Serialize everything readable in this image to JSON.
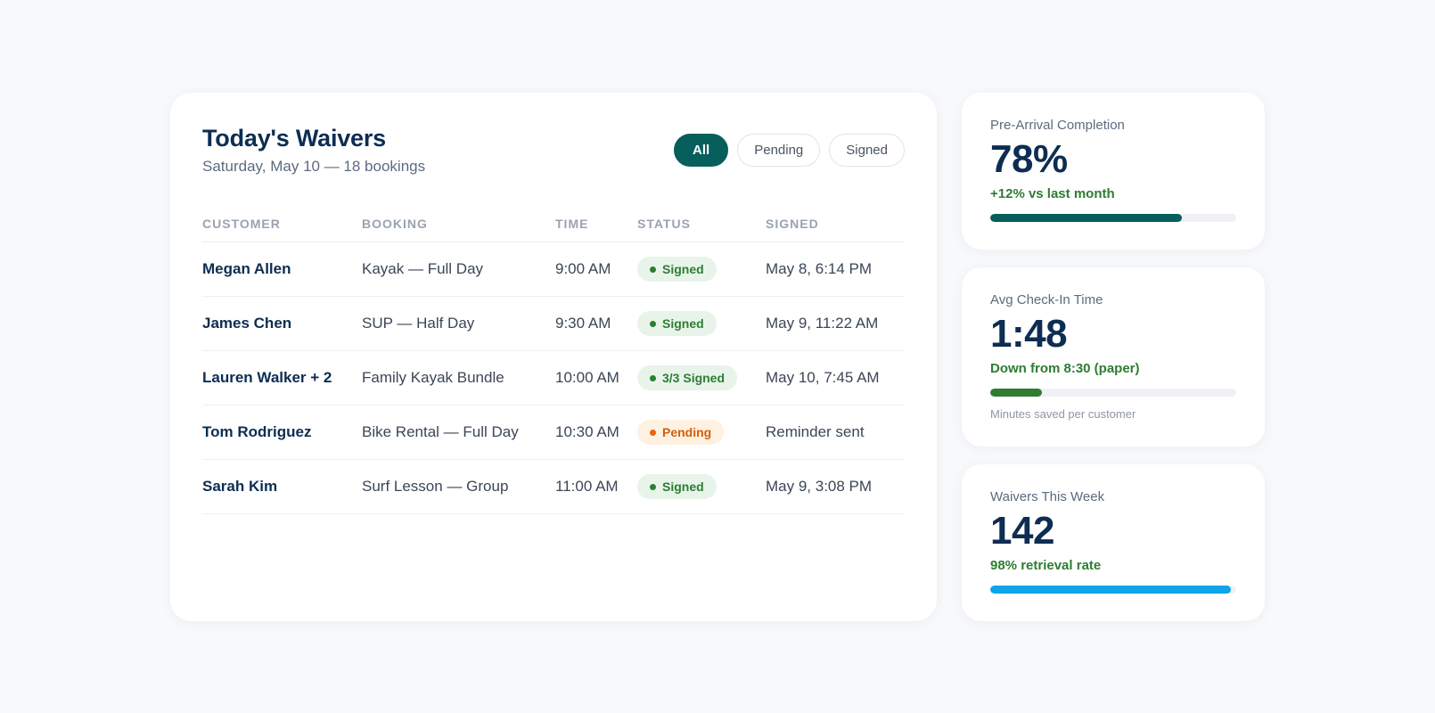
{
  "waivers": {
    "title": "Today's Waivers",
    "subtitle": "Saturday, May 10 — 18 bookings",
    "filters": [
      {
        "label": "All",
        "active": true
      },
      {
        "label": "Pending",
        "active": false
      },
      {
        "label": "Signed",
        "active": false
      }
    ],
    "columns": [
      "CUSTOMER",
      "BOOKING",
      "TIME",
      "STATUS",
      "SIGNED"
    ],
    "rows": [
      {
        "customer": "Megan Allen",
        "booking": "Kayak — Full Day",
        "time": "9:00 AM",
        "status": "Signed",
        "status_kind": "signed",
        "signed": "May 8, 6:14 PM"
      },
      {
        "customer": "James Chen",
        "booking": "SUP — Half Day",
        "time": "9:30 AM",
        "status": "Signed",
        "status_kind": "signed",
        "signed": "May 9, 11:22 AM"
      },
      {
        "customer": "Lauren Walker + 2",
        "booking": "Family Kayak Bundle",
        "time": "10:00 AM",
        "status": "3/3 Signed",
        "status_kind": "signed",
        "signed": "May 10, 7:45 AM"
      },
      {
        "customer": "Tom Rodriguez",
        "booking": "Bike Rental — Full Day",
        "time": "10:30 AM",
        "status": "Pending",
        "status_kind": "pending",
        "signed": "Reminder sent"
      },
      {
        "customer": "Sarah Kim",
        "booking": "Surf Lesson — Group",
        "time": "11:00 AM",
        "status": "Signed",
        "status_kind": "signed",
        "signed": "May 9, 3:08 PM"
      }
    ]
  },
  "stats": [
    {
      "label": "Pre-Arrival Completion",
      "value": "78%",
      "delta": "+12% vs last month",
      "progress": 0.78,
      "color": "#075f5c",
      "note": ""
    },
    {
      "label": "Avg Check-In Time",
      "value": "1:48",
      "delta": "Down from 8:30 (paper)",
      "progress": 0.21,
      "color": "#2e7d32",
      "note": "Minutes saved per customer"
    },
    {
      "label": "Waivers This Week",
      "value": "142",
      "delta": "98% retrieval rate",
      "progress": 0.98,
      "color": "#0ea5e9",
      "note": ""
    }
  ],
  "colors": {
    "accent": "#075f5c",
    "signed": "#2e7d32",
    "pending": "#d35f0c",
    "text_dark": "#0d2d52"
  }
}
